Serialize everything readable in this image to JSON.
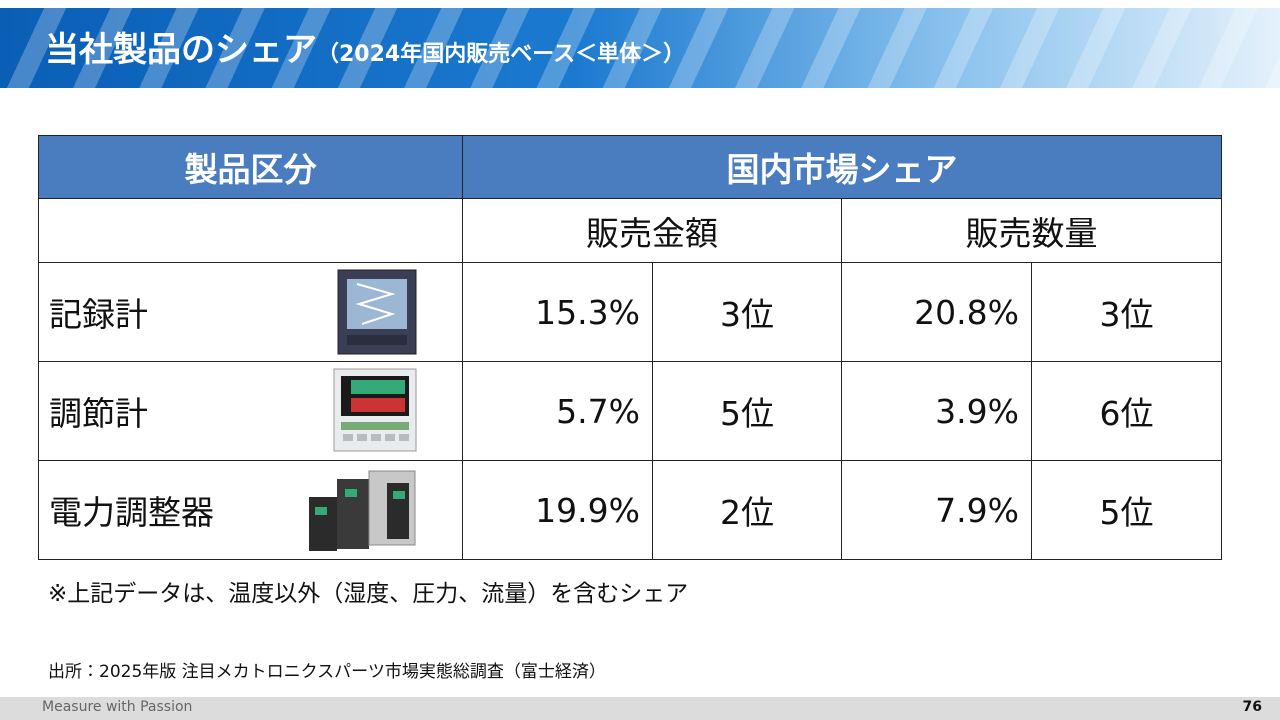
{
  "header": {
    "title": "当社製品のシェア",
    "subtitle": "（2024年国内販売ベース＜単体＞）"
  },
  "table": {
    "headers": [
      "製品区分",
      "国内市場シェア"
    ],
    "subheaders": [
      "販売金額",
      "販売数量"
    ],
    "rows": [
      [
        "記録計",
        "15.3%",
        "3位",
        "20.8%",
        "3位"
      ],
      [
        "調節計",
        "5.7%",
        "5位",
        "3.9%",
        "6位"
      ],
      [
        "電力調整器",
        "19.9%",
        "2位",
        "7.9%",
        "5位"
      ]
    ]
  },
  "note": "※上記データは、温度以外（湿度、圧力、流量）を含むシェア",
  "source": "出所：2025年版 注目メカトロニクスパーツ市場実態総調査（富士経済）",
  "footer": {
    "tagline": "Measure with Passion",
    "page": "76"
  }
}
